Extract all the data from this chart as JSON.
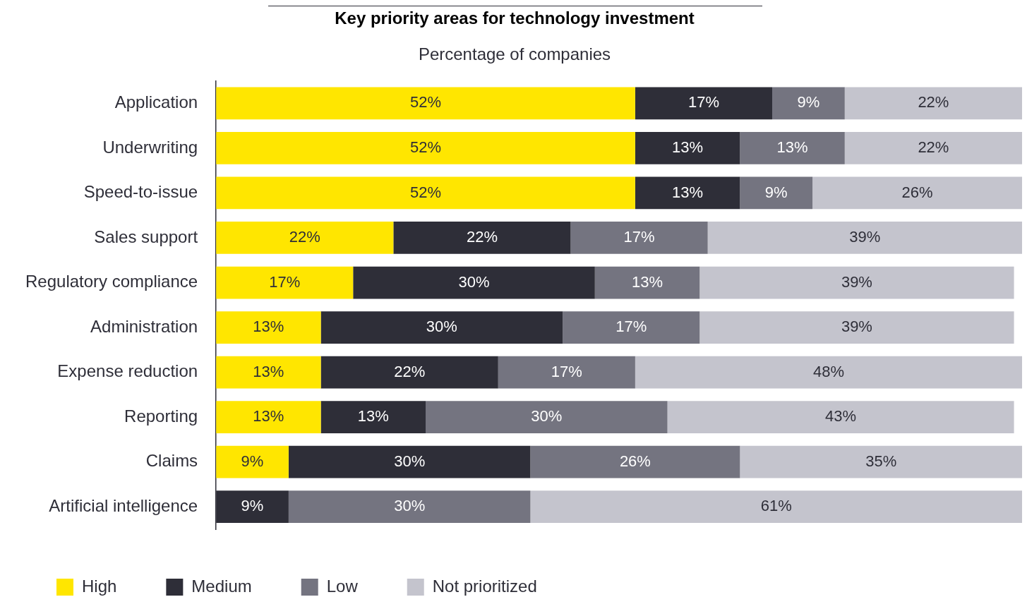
{
  "chart_data": {
    "type": "bar",
    "orientation": "horizontal",
    "stacked": true,
    "title": "Key priority areas for technology investment",
    "subtitle": "Percentage of companies",
    "categories": [
      "Application",
      "Underwriting",
      "Speed-to-issue",
      "Sales support",
      "Regulatory compliance",
      "Administration",
      "Expense reduction",
      "Reporting",
      "Claims",
      "Artificial intelligence"
    ],
    "xlim": [
      0,
      100
    ],
    "tick_labels": "y",
    "grid": false,
    "legend": "bottom left",
    "series": [
      {
        "name": "High",
        "color": "#ffe600",
        "values": [
          52,
          52,
          52,
          22,
          17,
          13,
          13,
          13,
          9,
          null
        ],
        "value_labels": [
          "52%",
          "52%",
          "52%",
          "22%",
          "17%",
          "13%",
          "13%",
          "13%",
          "9%",
          null
        ]
      },
      {
        "name": "Medium",
        "color": "#2e2e38",
        "values": [
          17,
          13,
          13,
          22,
          30,
          30,
          22,
          13,
          30,
          9
        ],
        "value_labels": [
          "17%",
          "13%",
          "13%",
          "22%",
          "30%",
          "30%",
          "22%",
          "13%",
          "30%",
          "9%"
        ]
      },
      {
        "name": "Low",
        "color": "#747480",
        "values": [
          9,
          13,
          9,
          17,
          13,
          17,
          17,
          30,
          26,
          30
        ],
        "value_labels": [
          "9%",
          "13%",
          "9%",
          "17%",
          "13%",
          "17%",
          "17%",
          "30%",
          "26%",
          "30%"
        ]
      },
      {
        "name": "Not prioritized",
        "color": "#c4c4cd",
        "values": [
          22,
          22,
          26,
          39,
          39,
          39,
          48,
          43,
          35,
          61
        ],
        "value_labels": [
          "22%",
          "22%",
          "26%",
          "39%",
          "39%",
          "39%",
          "48%",
          "43%",
          "35%",
          "61%"
        ]
      }
    ]
  }
}
